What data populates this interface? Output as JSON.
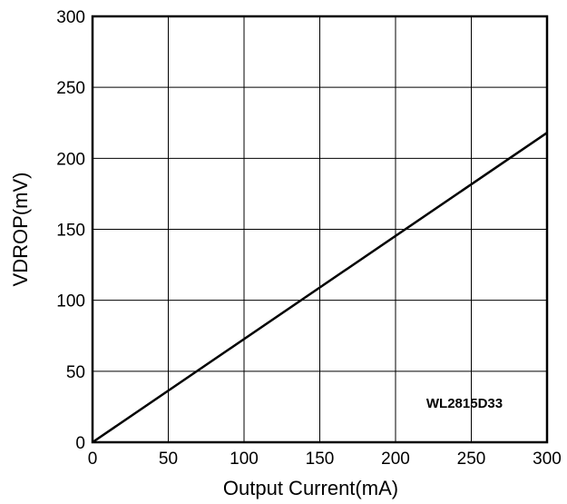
{
  "chart_data": {
    "type": "line",
    "title": "",
    "xlabel": "Output Current(mA)",
    "ylabel": "VDROP(mV)",
    "xlim": [
      0,
      300
    ],
    "ylim": [
      0,
      300
    ],
    "xticks": [
      0,
      50,
      100,
      150,
      200,
      250,
      300
    ],
    "yticks": [
      0,
      50,
      100,
      150,
      200,
      250,
      300
    ],
    "grid": true,
    "annotation": "WL2815D33",
    "series": [
      {
        "x": [
          0,
          300
        ],
        "y": [
          0,
          218
        ]
      }
    ]
  }
}
